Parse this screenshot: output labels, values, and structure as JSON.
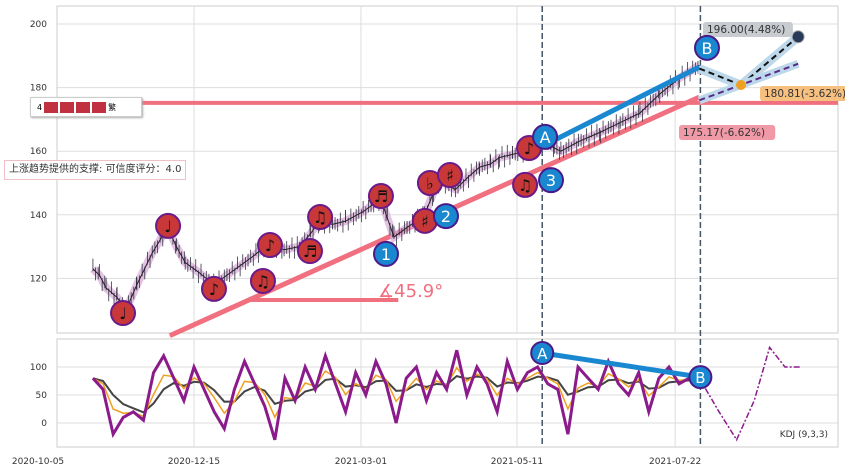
{
  "chart_data": {
    "type": "line",
    "title": "",
    "x_ticks": [
      "2020-10-05",
      "2020-12-15",
      "2021-03-01",
      "2021-05-11",
      "2021-07-22"
    ],
    "x_tick_days": [
      0,
      71,
      147,
      218,
      290
    ],
    "main": {
      "ylim": [
        102,
        206
      ],
      "y_ticks": [
        120,
        140,
        160,
        180,
        200
      ],
      "price_path": [
        [
          25,
          123
        ],
        [
          28,
          121
        ],
        [
          31,
          117
        ],
        [
          36,
          114
        ],
        [
          40,
          110
        ],
        [
          45,
          118
        ],
        [
          52,
          128
        ],
        [
          59,
          136
        ],
        [
          63,
          130
        ],
        [
          67,
          125
        ],
        [
          73,
          122
        ],
        [
          80,
          118
        ],
        [
          86,
          121
        ],
        [
          92,
          124
        ],
        [
          98,
          127
        ],
        [
          105,
          131
        ],
        [
          112,
          129
        ],
        [
          119,
          130
        ],
        [
          124,
          134
        ],
        [
          128,
          138
        ],
        [
          134,
          137
        ],
        [
          140,
          138
        ],
        [
          148,
          141
        ],
        [
          156,
          145
        ],
        [
          159,
          139
        ],
        [
          162,
          133
        ],
        [
          168,
          136
        ],
        [
          176,
          140
        ],
        [
          180,
          147
        ],
        [
          183,
          151
        ],
        [
          187,
          149
        ],
        [
          190,
          148
        ],
        [
          196,
          152
        ],
        [
          201,
          155
        ],
        [
          206,
          156
        ],
        [
          210,
          158
        ],
        [
          216,
          159
        ],
        [
          222,
          160
        ],
        [
          227,
          162
        ],
        [
          231,
          163
        ],
        [
          235,
          161
        ],
        [
          238,
          160
        ],
        [
          246,
          163
        ],
        [
          256,
          166
        ],
        [
          265,
          169
        ],
        [
          274,
          172
        ],
        [
          283,
          178
        ],
        [
          292,
          183
        ],
        [
          301,
          187
        ]
      ],
      "note_markers": [
        {
          "d": 38.7,
          "v": 109.1,
          "g": "♩"
        },
        {
          "d": 59.2,
          "v": 136.5,
          "g": "♩"
        },
        {
          "d": 80.1,
          "v": 116.7,
          "g": "♪"
        },
        {
          "d": 105.6,
          "v": 130.5,
          "g": "♪"
        },
        {
          "d": 102.4,
          "v": 119.2,
          "g": "♫"
        },
        {
          "d": 123.8,
          "v": 128.6,
          "g": "♬"
        },
        {
          "d": 128.4,
          "v": 139.3,
          "g": "♫"
        },
        {
          "d": 156.1,
          "v": 145.9,
          "g": "♬"
        },
        {
          "d": 176.1,
          "v": 138.1,
          "g": "♯"
        },
        {
          "d": 178.4,
          "v": 150.0,
          "g": "♭"
        },
        {
          "d": 187.5,
          "v": 152.5,
          "g": "♯"
        },
        {
          "d": 221.7,
          "v": 149.4,
          "g": "♫"
        },
        {
          "d": 223.5,
          "v": 161.0,
          "g": "♪"
        }
      ],
      "point_markers": [
        {
          "d": 158.4,
          "v": 127.7,
          "label": "1"
        },
        {
          "d": 185.7,
          "v": 139.6,
          "label": "2"
        },
        {
          "d": 233.5,
          "v": 150.9,
          "label": "3"
        },
        {
          "d": 230.8,
          "v": 164.5,
          "label": "A"
        },
        {
          "d": 304.5,
          "v": 192.5,
          "label": "B"
        }
      ],
      "support_line": [
        [
          60,
          102
        ],
        [
          301,
          177
        ]
      ],
      "horizontal_resistance": 175.2,
      "angle_base": [
        [
          96,
          113.2
        ],
        [
          164,
          113.2
        ]
      ],
      "angle_label": "∡45.9°",
      "ab_line": [
        [
          230.8,
          162
        ],
        [
          301,
          186.5
        ]
      ],
      "vlines_days": [
        229.5,
        301.5
      ],
      "forecast": {
        "b": [
          301,
          186
        ],
        "mid": [
          320,
          180.81
        ],
        "top": [
          346,
          196
        ],
        "purple": [
          [
            301,
            176
          ],
          [
            346,
            187.5
          ]
        ]
      },
      "labels": {
        "up": "196.00(4.48%)",
        "mid": "180.81(-3.62%)",
        "low": "175.17(-6.62%)"
      },
      "legend_count": "4",
      "legend_extra": "繁",
      "support_text": "上涨趋势提供的支撑: 可信度评分：4.0"
    },
    "kdj": {
      "ylim": [
        -45,
        145
      ],
      "y_ticks": [
        0,
        50,
        100
      ],
      "label": "KDJ (9,3,3)",
      "start_day": 25,
      "step_days": 4.6,
      "j": [
        80,
        60,
        -20,
        10,
        20,
        5,
        90,
        120,
        80,
        40,
        100,
        60,
        20,
        -10,
        60,
        110,
        70,
        30,
        -30,
        80,
        40,
        100,
        60,
        120,
        70,
        20,
        90,
        50,
        110,
        70,
        0,
        80,
        100,
        40,
        90,
        60,
        130,
        50,
        100,
        70,
        20,
        110,
        60,
        90,
        100,
        70,
        60,
        -20,
        100,
        80,
        60,
        110,
        70,
        50,
        90,
        20,
        80,
        100,
        70,
        80
      ],
      "forecast_j": [
        [
          301,
          80
        ],
        [
          310,
          20
        ],
        [
          318,
          -30
        ],
        [
          326,
          40
        ],
        [
          333,
          135
        ],
        [
          340,
          100
        ],
        [
          347,
          100
        ]
      ],
      "ab": {
        "A": 125,
        "B": 82
      }
    },
    "colors": {
      "red": "#f07080",
      "blue": "#1a88d0",
      "purple": "#8b1a8b",
      "orange": "#f0a020",
      "dark": "#333"
    }
  }
}
